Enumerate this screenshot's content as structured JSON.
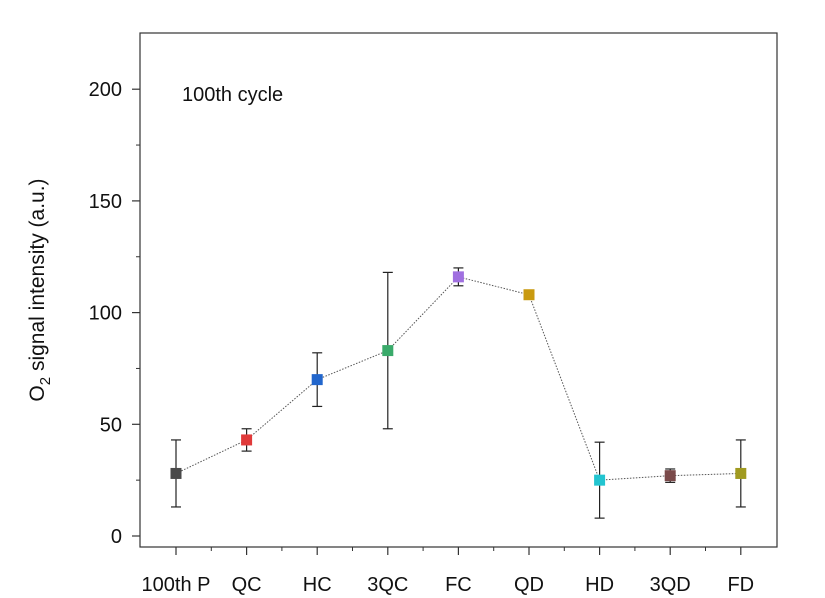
{
  "chart_data": {
    "type": "scatter",
    "title": "",
    "annotation": "100th cycle",
    "xlabel": "",
    "ylabel": {
      "prefix": "O",
      "subscript": "2",
      "suffix": " signal intensity (a.u.)"
    },
    "ylim": [
      -5,
      225
    ],
    "yticks": [
      0,
      50,
      100,
      150,
      200
    ],
    "y_minor_ticks": [
      25,
      75,
      125,
      175
    ],
    "grid": false,
    "connected_by_dotted_line": true,
    "categories": [
      "100th P",
      "QC",
      "HC",
      "3QC",
      "FC",
      "QD",
      "HD",
      "3QD",
      "FD"
    ],
    "values": [
      28,
      43,
      70,
      83,
      116,
      108,
      25,
      27,
      28
    ],
    "error": [
      15,
      5,
      12,
      35,
      4,
      2,
      17,
      3,
      15
    ],
    "colors": [
      "#4a4a4a",
      "#e03a3a",
      "#2266cc",
      "#3aaa6a",
      "#a070e0",
      "#c99a10",
      "#22c4d0",
      "#7a4a4a",
      "#a09a20"
    ],
    "line_color": "#555555",
    "axis_color": "#333333"
  }
}
